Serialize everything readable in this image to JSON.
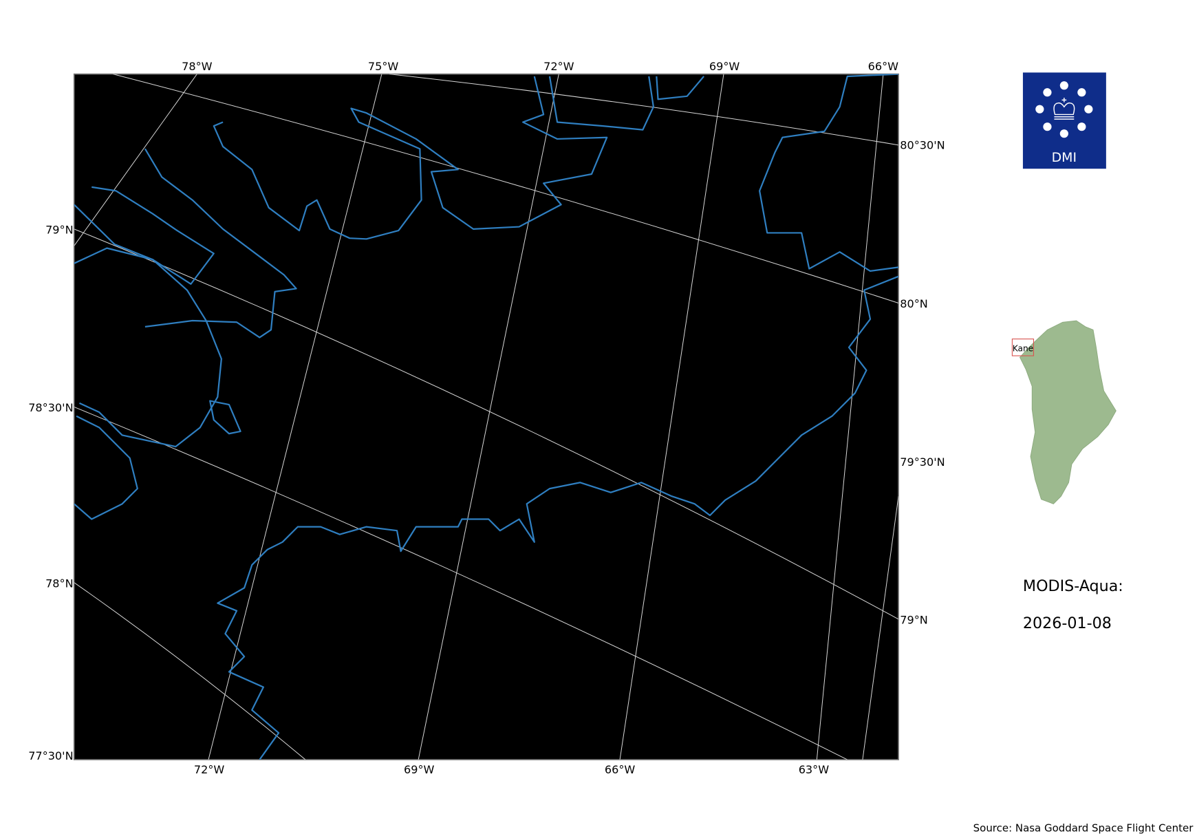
{
  "map": {
    "top_lon_labels": [
      "78°W",
      "75°W",
      "72°W",
      "69°W",
      "66°W"
    ],
    "bottom_lon_labels": [
      "72°W",
      "69°W",
      "66°W",
      "63°W"
    ],
    "left_lat_labels": [
      "79°N",
      "78°30'N",
      "78°N",
      "77°30'N"
    ],
    "right_lat_labels": [
      "80°30'N",
      "80°N",
      "79°30'N",
      "79°N"
    ],
    "background_color": "#000000",
    "coastline_color": "#2f7fc1"
  },
  "logo": {
    "text": "DMI",
    "color": "#0f2d8a"
  },
  "inset": {
    "region_label": "Kane",
    "land_color": "#9dba8f",
    "box_color": "#d9534f"
  },
  "product": {
    "sensor": "MODIS-Aqua:",
    "date": "2026-01-08"
  },
  "source": "Source: Nasa Goddard Space Flight Center"
}
